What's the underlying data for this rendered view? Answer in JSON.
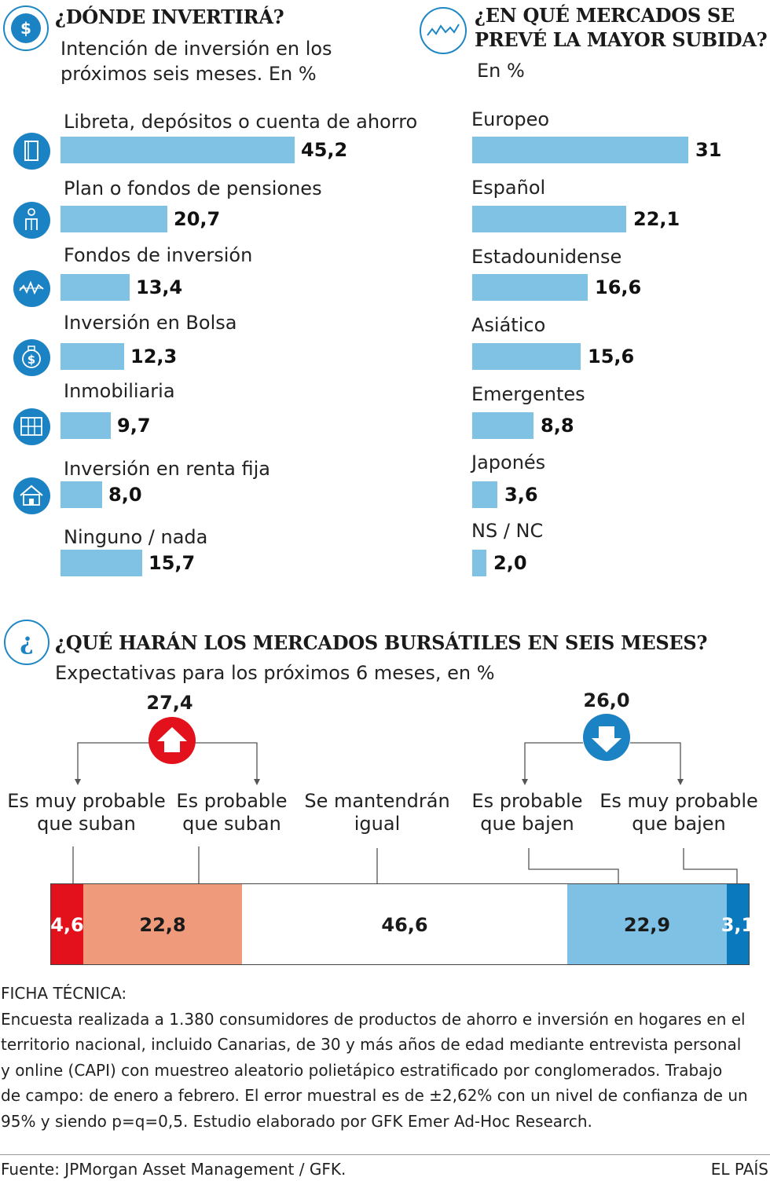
{
  "section_invest": {
    "title": "¿DÓNDE INVERTIRÁ?",
    "subtitle_line1": "Intención de inversión en los",
    "subtitle_line2": "próximos seis meses. En %"
  },
  "section_markets": {
    "title_line1": "¿EN QUÉ MERCADOS SE",
    "title_line2": "PREVÉ LA MAYOR SUBIDA?",
    "subtitle": "En %"
  },
  "section_outlook": {
    "title": "¿QUÉ HARÁN LOS MERCADOS BURSÁTILES EN SEIS MESES?",
    "subtitle": "Expectativas para los próximos 6 meses, en %",
    "rise_total": "27,4",
    "fall_total": "26,0",
    "question_mark": "¿"
  },
  "icons": {
    "invest_header": "dollar-bag-icon",
    "markets_header": "stock-line-icon",
    "outlook_header": "question-icon",
    "rise": "up-arrow-icon",
    "fall": "down-arrow-icon",
    "dollar_symbol": "$"
  },
  "colors": {
    "bar": "#80c2e4",
    "icon": "#1b82c3",
    "very_up": "#e2111c",
    "up": "#ef9a7b",
    "same": "#ffffff",
    "down": "#7fc1e4",
    "very_down": "#0a79bd"
  },
  "chart_data": [
    {
      "type": "bar",
      "orientation": "horizontal",
      "title": "¿DÓNDE INVERTIRÁ?",
      "subtitle": "Intención de inversión en los próximos seis meses. En %",
      "categories": [
        "Libreta, depósitos o cuenta de ahorro",
        "Plan o fondos de pensiones",
        "Fondos de inversión",
        "Inversión en Bolsa",
        "Inmobiliaria",
        "Inversión en renta fija",
        "Ninguno / nada"
      ],
      "values": [
        45.2,
        20.7,
        13.4,
        12.3,
        9.7,
        8.0,
        15.7
      ],
      "value_labels": [
        "45,2",
        "20,7",
        "13,4",
        "12,3",
        "9,7",
        "8,0",
        "15,7"
      ],
      "icons": [
        "passbook-icon",
        "pension-icon",
        "fund-chart-icon",
        "dollar-bag-icon",
        "building-grid-icon",
        "house-icon",
        ""
      ],
      "xlim": [
        0,
        50
      ]
    },
    {
      "type": "bar",
      "orientation": "horizontal",
      "title": "¿EN QUÉ MERCADOS SE PREVÉ LA MAYOR SUBIDA?",
      "subtitle": "En %",
      "categories": [
        "Europeo",
        "Español",
        "Estadounidense",
        "Asiático",
        "Emergentes",
        "Japonés",
        "NS / NC"
      ],
      "values": [
        31,
        22.1,
        16.6,
        15.6,
        8.8,
        3.6,
        2.0
      ],
      "value_labels": [
        "31",
        "22,1",
        "16,6",
        "15,6",
        "8,8",
        "3,6",
        "2,0"
      ],
      "xlim": [
        0,
        31
      ]
    },
    {
      "type": "bar",
      "orientation": "stacked-100",
      "title": "¿QUÉ HARÁN LOS MERCADOS BURSÁTILES EN SEIS MESES?",
      "subtitle": "Expectativas para los próximos 6 meses, en %",
      "categories": [
        "Es muy probable que suban",
        "Es probable que suban",
        "Se mantendrán igual",
        "Es probable que bajen",
        "Es muy probable que bajen"
      ],
      "label_lines": [
        [
          "Es muy probable",
          "que suban"
        ],
        [
          "Es probable",
          "que suban"
        ],
        [
          "Se mantendrán",
          "igual"
        ],
        [
          "Es probable",
          "que bajen"
        ],
        [
          "Es muy probable",
          "que bajen"
        ]
      ],
      "values": [
        4.6,
        22.8,
        46.6,
        22.9,
        3.1
      ],
      "value_labels": [
        "4,6",
        "22,8",
        "46,6",
        "22,9",
        "3,1"
      ],
      "colors": [
        "#e2111c",
        "#ef9a7b",
        "#ffffff",
        "#7fc1e4",
        "#0a79bd"
      ],
      "value_colors": [
        "#ffffff",
        "#1a1a1a",
        "#1a1a1a",
        "#1a1a1a",
        "#ffffff"
      ],
      "group_totals": {
        "suben": "27,4",
        "bajen": "26,0"
      }
    }
  ],
  "ficha": {
    "heading": "FICHA TÉCNICA:",
    "lines": [
      "Encuesta realizada a 1.380 consumidores de productos de ahorro e inversión en hogares en el",
      "territorio nacional, incluido Canarias, de 30 y más años de edad mediante entrevista personal",
      "y online (CAPI) con muestreo aleatorio polietápico estratificado por conglomerados. Trabajo",
      "de campo: de enero a febrero. El error muestral es de  ±2,62% con un nivel de confianza de un",
      "95% y siendo p=q=0,5.  Estudio elaborado por GFK Emer Ad-Hoc Research."
    ]
  },
  "footer": {
    "source": "Fuente: JPMorgan Asset Management / GFK.",
    "brand": "EL PAÍS"
  }
}
